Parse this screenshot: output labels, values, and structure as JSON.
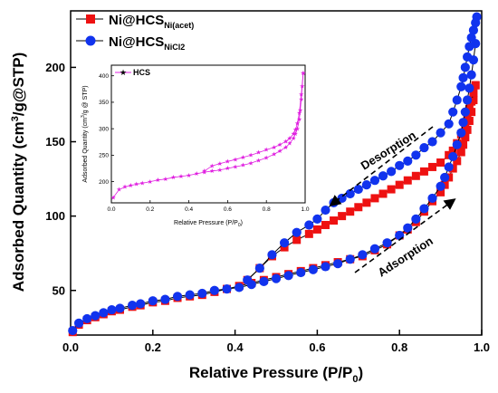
{
  "chart_data": [
    {
      "type": "line",
      "xlabel": "Relative Pressure (P/P",
      "xlabel_sub": "0",
      "xlabel_end": ")",
      "ylabel": "Adsorbed Quantity (cm",
      "ylabel_sup": "3",
      "ylabel_end": "/g@STP)",
      "xlim": [
        0,
        1
      ],
      "ylim": [
        20,
        238
      ],
      "xticks": [
        "0.0",
        "0.2",
        "0.4",
        "0.6",
        "0.8",
        "1.0"
      ],
      "yticks": [
        "50",
        "100",
        "150",
        "200"
      ],
      "grid": false,
      "legend_position": "top-left",
      "series": [
        {
          "name": "Ni@HCS",
          "name_sub": "Ni(acet)",
          "color": "#ee1111",
          "marker": "square",
          "branch": "adsorption",
          "x": [
            0.005,
            0.02,
            0.04,
            0.06,
            0.08,
            0.1,
            0.12,
            0.15,
            0.17,
            0.2,
            0.23,
            0.26,
            0.29,
            0.32,
            0.35,
            0.38,
            0.41,
            0.44,
            0.47,
            0.5,
            0.53,
            0.56,
            0.59,
            0.62,
            0.65,
            0.68,
            0.71,
            0.74,
            0.77,
            0.8,
            0.82,
            0.84,
            0.86,
            0.88,
            0.9,
            0.91,
            0.92,
            0.93,
            0.94,
            0.95,
            0.955,
            0.96,
            0.965,
            0.97,
            0.975,
            0.98,
            0.985
          ],
          "y": [
            22,
            27,
            30,
            32,
            34,
            36,
            37,
            39,
            40,
            42,
            43,
            45,
            46,
            47,
            49,
            51,
            53,
            55,
            57,
            59,
            61,
            63,
            65,
            67,
            69,
            71,
            73,
            77,
            81,
            87,
            91,
            96,
            103,
            110,
            116,
            121,
            126,
            132,
            137,
            143,
            148,
            153,
            158,
            164,
            170,
            178,
            188
          ]
        },
        {
          "name": "Ni@HCS",
          "name_sub": "Ni(acet)",
          "color": "#ee1111",
          "marker": "square",
          "branch": "desorption",
          "x": [
            0.985,
            0.98,
            0.975,
            0.97,
            0.965,
            0.96,
            0.95,
            0.94,
            0.93,
            0.92,
            0.9,
            0.88,
            0.86,
            0.84,
            0.82,
            0.8,
            0.78,
            0.76,
            0.74,
            0.72,
            0.7,
            0.68,
            0.66,
            0.64,
            0.62,
            0.6,
            0.58,
            0.55,
            0.52,
            0.49,
            0.46,
            0.43
          ],
          "y": [
            188,
            183,
            177,
            172,
            166,
            160,
            155,
            149,
            144,
            141,
            136,
            133,
            130,
            127,
            124,
            121,
            118,
            115,
            112,
            109,
            106,
            103,
            100,
            97,
            94,
            91,
            88,
            84,
            79,
            73,
            65,
            57
          ]
        },
        {
          "name": "Ni@HCS",
          "name_sub": "NiCl2",
          "color": "#1133ee",
          "marker": "circle",
          "branch": "adsorption",
          "x": [
            0.005,
            0.02,
            0.04,
            0.06,
            0.08,
            0.1,
            0.12,
            0.15,
            0.17,
            0.2,
            0.23,
            0.26,
            0.29,
            0.32,
            0.35,
            0.38,
            0.41,
            0.44,
            0.47,
            0.5,
            0.53,
            0.56,
            0.59,
            0.62,
            0.65,
            0.68,
            0.71,
            0.74,
            0.77,
            0.8,
            0.82,
            0.84,
            0.86,
            0.88,
            0.9,
            0.91,
            0.92,
            0.93,
            0.94,
            0.95,
            0.955,
            0.96,
            0.965,
            0.97,
            0.975,
            0.98,
            0.985
          ],
          "y": [
            23,
            28,
            31,
            33,
            35,
            37,
            38,
            40,
            41,
            43,
            44,
            46,
            47,
            48,
            50,
            51,
            52,
            54,
            56,
            58,
            60,
            62,
            64,
            66,
            68,
            71,
            74,
            78,
            82,
            87,
            92,
            98,
            105,
            112,
            120,
            126,
            133,
            140,
            148,
            156,
            163,
            170,
            178,
            186,
            195,
            205,
            216
          ]
        },
        {
          "name": "Ni@HCS",
          "name_sub": "NiCl2",
          "color": "#1133ee",
          "marker": "circle",
          "branch": "desorption",
          "x": [
            0.988,
            0.985,
            0.98,
            0.975,
            0.97,
            0.965,
            0.96,
            0.955,
            0.95,
            0.94,
            0.93,
            0.92,
            0.9,
            0.88,
            0.86,
            0.84,
            0.82,
            0.8,
            0.78,
            0.76,
            0.74,
            0.72,
            0.7,
            0.68,
            0.66,
            0.64,
            0.62,
            0.6,
            0.58,
            0.55,
            0.52,
            0.49,
            0.46,
            0.43
          ],
          "y": [
            234,
            230,
            225,
            220,
            214,
            207,
            200,
            193,
            187,
            178,
            170,
            162,
            156,
            150,
            146,
            141,
            137,
            134,
            130,
            127,
            124,
            121,
            118,
            115,
            112,
            109,
            104,
            98,
            94,
            89,
            82,
            74,
            65,
            57
          ]
        }
      ],
      "annotations": [
        {
          "text": "Desorption"
        },
        {
          "text": "Adsorption"
        }
      ]
    },
    {
      "type": "line",
      "xlabel": "Relative Pressure (P/P",
      "xlabel_sub": "0",
      "xlabel_end": ")",
      "ylabel": "Adsorbed Quantity (cm",
      "ylabel_sup": "3",
      "ylabel_end": "/g @ STP)",
      "xlim": [
        0,
        1
      ],
      "ylim": [
        160,
        420
      ],
      "xticks": [
        "0.0",
        "0.2",
        "0.4",
        "0.6",
        "0.8",
        "1.0"
      ],
      "yticks": [
        "200",
        "250",
        "300",
        "350",
        "400"
      ],
      "grid": false,
      "legend_position": "top-left",
      "series": [
        {
          "name": "HCS",
          "color": "#e020e0",
          "marker": "star",
          "branch": "adsorption",
          "x": [
            0.01,
            0.04,
            0.07,
            0.1,
            0.13,
            0.16,
            0.2,
            0.24,
            0.28,
            0.32,
            0.36,
            0.4,
            0.44,
            0.48,
            0.52,
            0.56,
            0.6,
            0.64,
            0.68,
            0.72,
            0.76,
            0.8,
            0.84,
            0.87,
            0.9,
            0.92,
            0.94,
            0.95,
            0.96,
            0.97,
            0.975,
            0.98,
            0.985,
            0.99
          ],
          "y": [
            170,
            185,
            190,
            193,
            195,
            197,
            200,
            203,
            205,
            208,
            210,
            212,
            215,
            218,
            220,
            222,
            225,
            228,
            231,
            235,
            240,
            245,
            252,
            258,
            265,
            272,
            282,
            290,
            300,
            318,
            335,
            355,
            380,
            405
          ]
        },
        {
          "name": "HCS",
          "color": "#e020e0",
          "marker": "star",
          "branch": "desorption",
          "x": [
            0.99,
            0.98,
            0.97,
            0.96,
            0.95,
            0.94,
            0.92,
            0.9,
            0.87,
            0.84,
            0.8,
            0.76,
            0.72,
            0.68,
            0.64,
            0.6,
            0.56,
            0.52,
            0.48
          ],
          "y": [
            405,
            365,
            330,
            310,
            298,
            290,
            282,
            276,
            270,
            265,
            260,
            255,
            250,
            246,
            242,
            238,
            234,
            230,
            220
          ]
        }
      ]
    }
  ]
}
